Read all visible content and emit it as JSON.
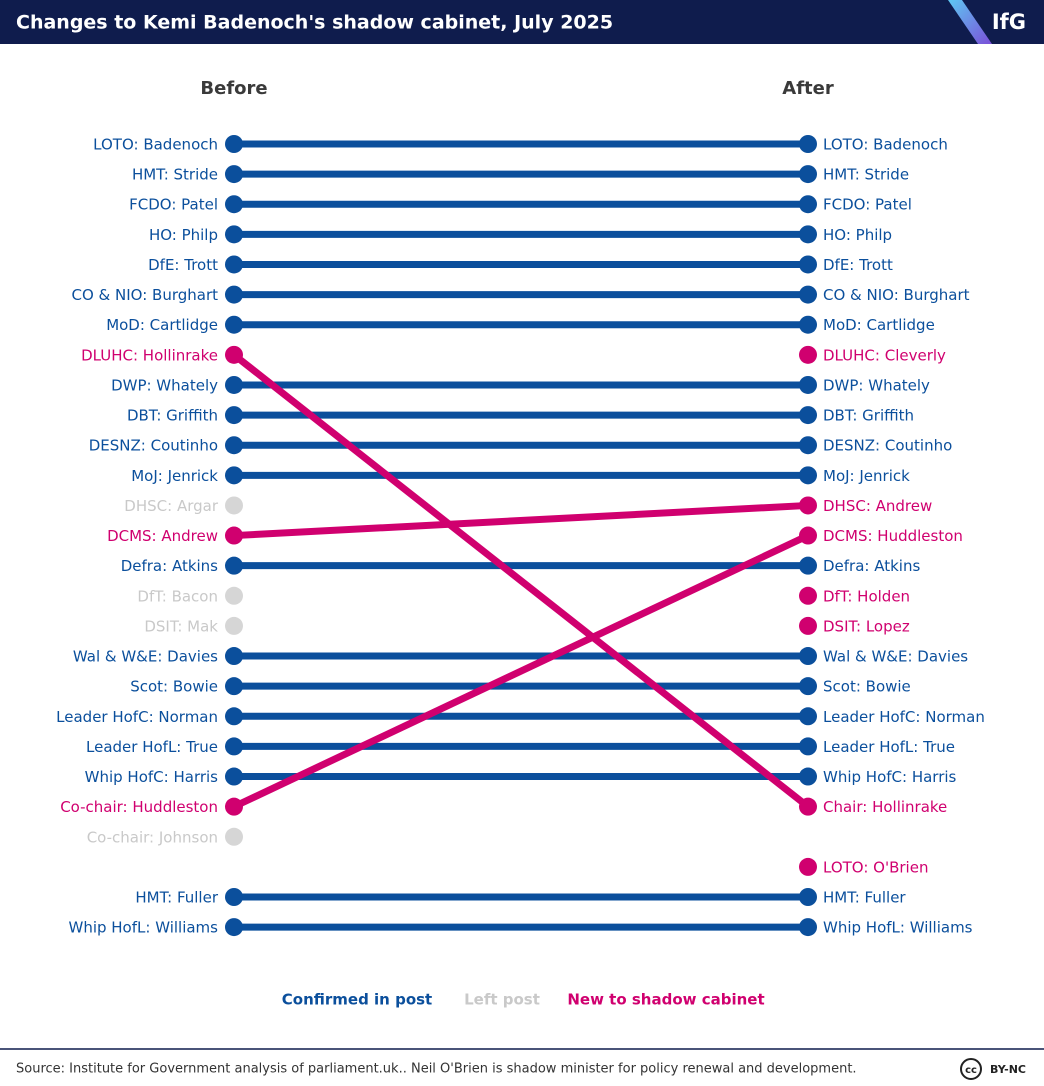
{
  "header": {
    "title": "Changes to Kemi Badenoch's shadow cabinet, July 2025",
    "logo": "IfG"
  },
  "columns": {
    "before": "Before",
    "after": "After"
  },
  "legend": [
    {
      "key": "confirmed",
      "label": "Confirmed in post",
      "color": "#0b4f9c"
    },
    {
      "key": "left",
      "label": "Left post",
      "color": "#d6d6d6"
    },
    {
      "key": "new",
      "label": "New to shadow cabinet",
      "color": "#d0006f"
    }
  ],
  "before": [
    {
      "label": "LOTO: Badenoch",
      "status": "confirmed"
    },
    {
      "label": "HMT: Stride",
      "status": "confirmed"
    },
    {
      "label": "FCDO: Patel",
      "status": "confirmed"
    },
    {
      "label": "HO: Philp",
      "status": "confirmed"
    },
    {
      "label": "DfE: Trott",
      "status": "confirmed"
    },
    {
      "label": "CO & NIO: Burghart",
      "status": "confirmed"
    },
    {
      "label": "MoD: Cartlidge",
      "status": "confirmed"
    },
    {
      "label": "DLUHC: Hollinrake",
      "status": "new"
    },
    {
      "label": "DWP: Whately",
      "status": "confirmed"
    },
    {
      "label": "DBT: Griffith",
      "status": "confirmed"
    },
    {
      "label": "DESNZ: Coutinho",
      "status": "confirmed"
    },
    {
      "label": "MoJ: Jenrick",
      "status": "confirmed"
    },
    {
      "label": "DHSC: Argar",
      "status": "left"
    },
    {
      "label": "DCMS: Andrew",
      "status": "new"
    },
    {
      "label": "Defra: Atkins",
      "status": "confirmed"
    },
    {
      "label": "DfT: Bacon",
      "status": "left"
    },
    {
      "label": "DSIT: Mak",
      "status": "left"
    },
    {
      "label": "Wal & W&E: Davies",
      "status": "confirmed"
    },
    {
      "label": "Scot: Bowie",
      "status": "confirmed"
    },
    {
      "label": "Leader HofC: Norman",
      "status": "confirmed"
    },
    {
      "label": "Leader HofL: True",
      "status": "confirmed"
    },
    {
      "label": "Whip HofC: Harris",
      "status": "confirmed"
    },
    {
      "label": "Co-chair: Huddleston",
      "status": "new"
    },
    {
      "label": "Co-chair: Johnson",
      "status": "left"
    },
    null,
    {
      "label": "HMT: Fuller",
      "status": "confirmed"
    },
    {
      "label": "Whip HofL: Williams",
      "status": "confirmed"
    }
  ],
  "after": [
    {
      "label": "LOTO: Badenoch",
      "status": "confirmed"
    },
    {
      "label": "HMT: Stride",
      "status": "confirmed"
    },
    {
      "label": "FCDO: Patel",
      "status": "confirmed"
    },
    {
      "label": "HO: Philp",
      "status": "confirmed"
    },
    {
      "label": "DfE: Trott",
      "status": "confirmed"
    },
    {
      "label": "CO & NIO: Burghart",
      "status": "confirmed"
    },
    {
      "label": "MoD: Cartlidge",
      "status": "confirmed"
    },
    {
      "label": "DLUHC: Cleverly",
      "status": "new"
    },
    {
      "label": "DWP: Whately",
      "status": "confirmed"
    },
    {
      "label": "DBT: Griffith",
      "status": "confirmed"
    },
    {
      "label": "DESNZ: Coutinho",
      "status": "confirmed"
    },
    {
      "label": "MoJ: Jenrick",
      "status": "confirmed"
    },
    {
      "label": "DHSC: Andrew",
      "status": "new"
    },
    {
      "label": "DCMS: Huddleston",
      "status": "new"
    },
    {
      "label": "Defra: Atkins",
      "status": "confirmed"
    },
    {
      "label": "DfT: Holden",
      "status": "new"
    },
    {
      "label": "DSIT: Lopez",
      "status": "new"
    },
    {
      "label": "Wal & W&E: Davies",
      "status": "confirmed"
    },
    {
      "label": "Scot: Bowie",
      "status": "confirmed"
    },
    {
      "label": "Leader HofC: Norman",
      "status": "confirmed"
    },
    {
      "label": "Leader HofL: True",
      "status": "confirmed"
    },
    {
      "label": "Whip HofC: Harris",
      "status": "confirmed"
    },
    {
      "label": "Chair: Hollinrake",
      "status": "new"
    },
    null,
    {
      "label": "LOTO: O'Brien",
      "status": "new"
    },
    {
      "label": "HMT: Fuller",
      "status": "confirmed"
    },
    {
      "label": "Whip HofL: Williams",
      "status": "confirmed"
    }
  ],
  "links": [
    {
      "from": 0,
      "to": 0,
      "status": "confirmed"
    },
    {
      "from": 1,
      "to": 1,
      "status": "confirmed"
    },
    {
      "from": 2,
      "to": 2,
      "status": "confirmed"
    },
    {
      "from": 3,
      "to": 3,
      "status": "confirmed"
    },
    {
      "from": 4,
      "to": 4,
      "status": "confirmed"
    },
    {
      "from": 5,
      "to": 5,
      "status": "confirmed"
    },
    {
      "from": 6,
      "to": 6,
      "status": "confirmed"
    },
    {
      "from": 8,
      "to": 8,
      "status": "confirmed"
    },
    {
      "from": 9,
      "to": 9,
      "status": "confirmed"
    },
    {
      "from": 10,
      "to": 10,
      "status": "confirmed"
    },
    {
      "from": 11,
      "to": 11,
      "status": "confirmed"
    },
    {
      "from": 14,
      "to": 14,
      "status": "confirmed"
    },
    {
      "from": 17,
      "to": 17,
      "status": "confirmed"
    },
    {
      "from": 18,
      "to": 18,
      "status": "confirmed"
    },
    {
      "from": 19,
      "to": 19,
      "status": "confirmed"
    },
    {
      "from": 20,
      "to": 20,
      "status": "confirmed"
    },
    {
      "from": 21,
      "to": 21,
      "status": "confirmed"
    },
    {
      "from": 25,
      "to": 25,
      "status": "confirmed"
    },
    {
      "from": 26,
      "to": 26,
      "status": "confirmed"
    },
    {
      "from": 7,
      "to": 22,
      "status": "new"
    },
    {
      "from": 13,
      "to": 12,
      "status": "new"
    },
    {
      "from": 22,
      "to": 13,
      "status": "new"
    }
  ],
  "footer": {
    "source": "Source: Institute for Government analysis of parliament.uk.. Neil O'Brien is shadow minister for policy renewal and development.",
    "license_icon": "cc",
    "license": "BY-NC"
  }
}
